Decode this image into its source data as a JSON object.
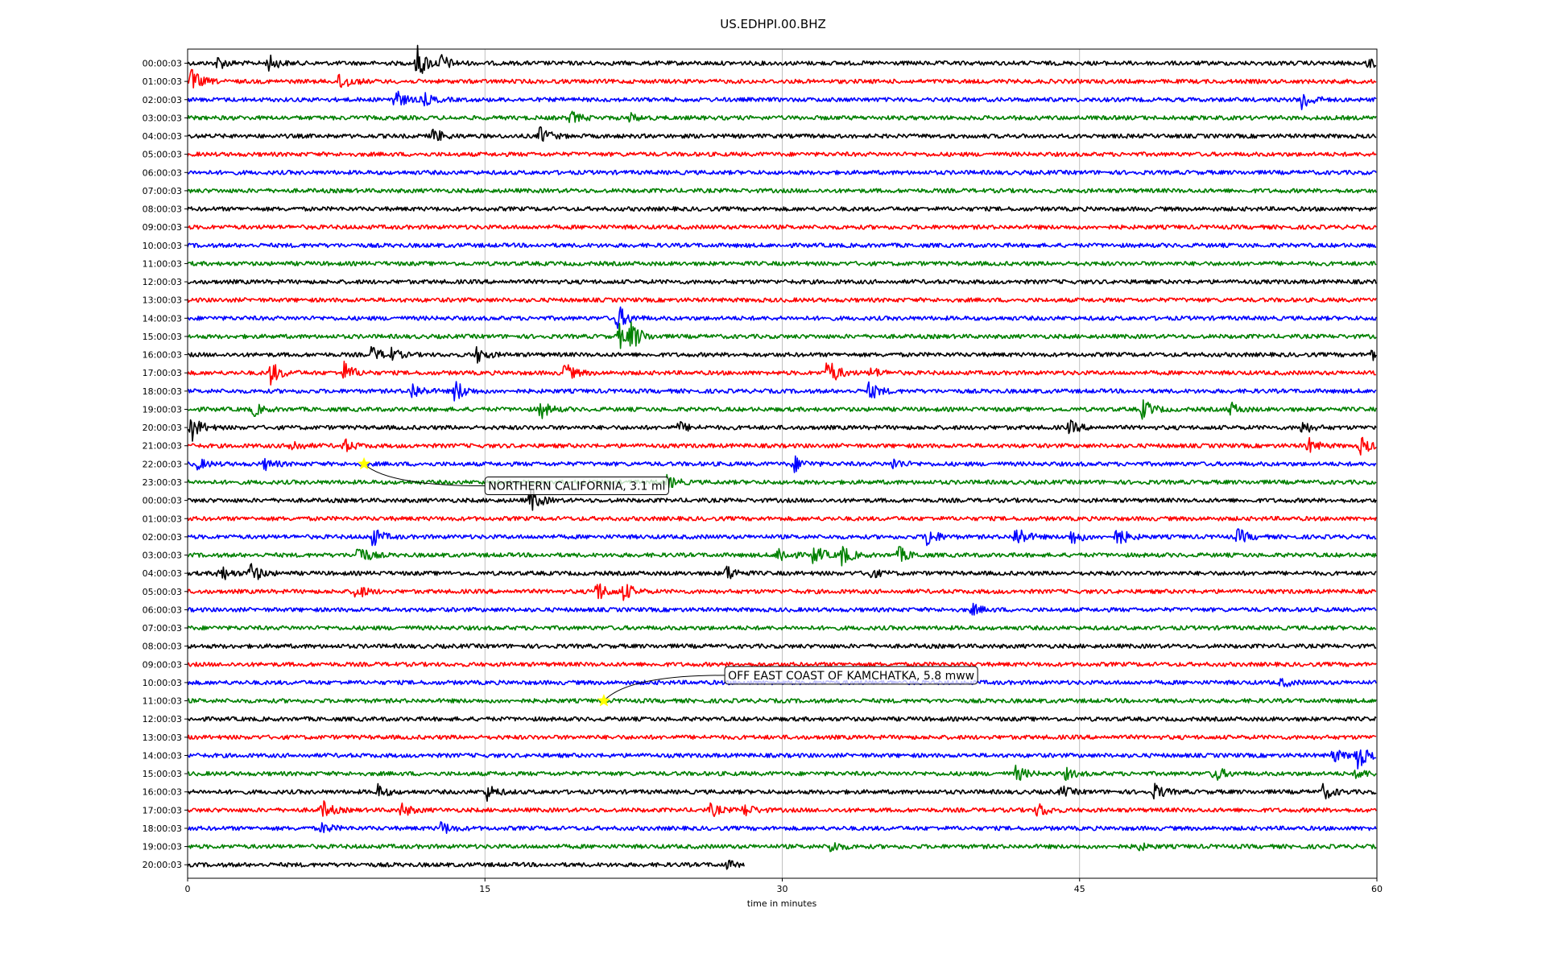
{
  "chart_data": {
    "type": "line",
    "title": "US.EDHPI.00.BHZ",
    "xlabel": "time in minutes",
    "ylabel": "",
    "xlim": [
      0,
      60
    ],
    "x_ticks": [
      0,
      15,
      30,
      45,
      60
    ],
    "grid": "vertical",
    "row_colors": [
      "#000000",
      "#ff0000",
      "#0000ff",
      "#008000"
    ],
    "row_labels": [
      "00:00:03",
      "01:00:03",
      "02:00:03",
      "03:00:03",
      "04:00:03",
      "05:00:03",
      "06:00:03",
      "07:00:03",
      "08:00:03",
      "09:00:03",
      "10:00:03",
      "11:00:03",
      "12:00:03",
      "13:00:03",
      "14:00:03",
      "15:00:03",
      "16:00:03",
      "17:00:03",
      "18:00:03",
      "19:00:03",
      "20:00:03",
      "21:00:03",
      "22:00:03",
      "23:00:03",
      "00:00:03",
      "01:00:03",
      "02:00:03",
      "03:00:03",
      "04:00:03",
      "05:00:03",
      "06:00:03",
      "07:00:03",
      "08:00:03",
      "09:00:03",
      "10:00:03",
      "11:00:03",
      "12:00:03",
      "13:00:03",
      "14:00:03",
      "15:00:03",
      "16:00:03",
      "17:00:03",
      "18:00:03",
      "19:00:03",
      "20:00:03"
    ],
    "last_row_end_minute": 28.1,
    "events": [
      {
        "label": "NORTHERN CALIFORNIA, 3.1 ml",
        "row": 22,
        "minute": 8.9,
        "label_row": 23.2,
        "label_minute": 15.0,
        "marker_color": "#ffff00"
      },
      {
        "label": "OFF EAST COAST OF KAMCHATKA, 5.8 mww",
        "row": 35,
        "minute": 21.0,
        "label_row": 33.6,
        "label_minute": 27.1,
        "marker_color": "#ffff00"
      }
    ],
    "bursts": [
      {
        "row": 0,
        "minute": 1.5,
        "amp": 0.5
      },
      {
        "row": 0,
        "minute": 4.1,
        "amp": 0.6
      },
      {
        "row": 0,
        "minute": 11.6,
        "amp": 1.3
      },
      {
        "row": 0,
        "minute": 12.8,
        "amp": 0.6
      },
      {
        "row": 0,
        "minute": 59.6,
        "amp": 0.4
      },
      {
        "row": 1,
        "minute": 0.2,
        "amp": 0.9
      },
      {
        "row": 1,
        "minute": 7.7,
        "amp": 0.8
      },
      {
        "row": 2,
        "minute": 10.4,
        "amp": 0.9
      },
      {
        "row": 2,
        "minute": 11.9,
        "amp": 0.5
      },
      {
        "row": 2,
        "minute": 56.2,
        "amp": 0.9
      },
      {
        "row": 3,
        "minute": 19.3,
        "amp": 0.5
      },
      {
        "row": 3,
        "minute": 22.3,
        "amp": 0.3
      },
      {
        "row": 4,
        "minute": 12.4,
        "amp": 0.6
      },
      {
        "row": 4,
        "minute": 17.8,
        "amp": 0.7
      },
      {
        "row": 14,
        "minute": 21.7,
        "amp": 1.0
      },
      {
        "row": 15,
        "minute": 21.8,
        "amp": 0.9
      },
      {
        "row": 15,
        "minute": 22.4,
        "amp": 1.0
      },
      {
        "row": 16,
        "minute": 9.3,
        "amp": 0.6
      },
      {
        "row": 16,
        "minute": 10.1,
        "amp": 0.6
      },
      {
        "row": 16,
        "minute": 14.6,
        "amp": 0.6
      },
      {
        "row": 16,
        "minute": 59.7,
        "amp": 0.5
      },
      {
        "row": 17,
        "minute": 4.2,
        "amp": 0.9
      },
      {
        "row": 17,
        "minute": 7.9,
        "amp": 0.8
      },
      {
        "row": 17,
        "minute": 19.0,
        "amp": 0.8
      },
      {
        "row": 17,
        "minute": 32.3,
        "amp": 1.2
      },
      {
        "row": 17,
        "minute": 34.5,
        "amp": 0.4
      },
      {
        "row": 18,
        "minute": 11.3,
        "amp": 0.7
      },
      {
        "row": 18,
        "minute": 13.5,
        "amp": 0.9
      },
      {
        "row": 18,
        "minute": 34.4,
        "amp": 0.7
      },
      {
        "row": 19,
        "minute": 3.3,
        "amp": 0.5
      },
      {
        "row": 19,
        "minute": 17.8,
        "amp": 0.7
      },
      {
        "row": 19,
        "minute": 48.2,
        "amp": 0.8
      },
      {
        "row": 19,
        "minute": 52.6,
        "amp": 0.5
      },
      {
        "row": 20,
        "minute": 0.2,
        "amp": 1.0
      },
      {
        "row": 20,
        "minute": 24.8,
        "amp": 0.4
      },
      {
        "row": 20,
        "minute": 44.5,
        "amp": 0.5
      },
      {
        "row": 20,
        "minute": 56.2,
        "amp": 0.5
      },
      {
        "row": 21,
        "minute": 5.2,
        "amp": 0.5
      },
      {
        "row": 21,
        "minute": 7.9,
        "amp": 0.5
      },
      {
        "row": 21,
        "minute": 56.5,
        "amp": 0.6
      },
      {
        "row": 21,
        "minute": 59.2,
        "amp": 0.7
      },
      {
        "row": 22,
        "minute": 0.5,
        "amp": 0.4
      },
      {
        "row": 22,
        "minute": 3.9,
        "amp": 0.4
      },
      {
        "row": 22,
        "minute": 30.6,
        "amp": 0.6
      },
      {
        "row": 22,
        "minute": 35.6,
        "amp": 0.4
      },
      {
        "row": 23,
        "minute": 24.2,
        "amp": 0.5
      },
      {
        "row": 24,
        "minute": 17.3,
        "amp": 0.9
      },
      {
        "row": 26,
        "minute": 9.3,
        "amp": 0.8
      },
      {
        "row": 26,
        "minute": 37.3,
        "amp": 0.8
      },
      {
        "row": 26,
        "minute": 41.8,
        "amp": 0.9
      },
      {
        "row": 26,
        "minute": 44.6,
        "amp": 0.6
      },
      {
        "row": 26,
        "minute": 46.9,
        "amp": 0.8
      },
      {
        "row": 26,
        "minute": 53.0,
        "amp": 0.6
      },
      {
        "row": 27,
        "minute": 8.6,
        "amp": 0.9
      },
      {
        "row": 27,
        "minute": 29.8,
        "amp": 0.7
      },
      {
        "row": 27,
        "minute": 31.6,
        "amp": 0.8
      },
      {
        "row": 27,
        "minute": 33.0,
        "amp": 0.8
      },
      {
        "row": 27,
        "minute": 35.9,
        "amp": 0.6
      },
      {
        "row": 28,
        "minute": 1.6,
        "amp": 0.7
      },
      {
        "row": 28,
        "minute": 3.2,
        "amp": 0.8
      },
      {
        "row": 28,
        "minute": 27.2,
        "amp": 0.6
      },
      {
        "row": 28,
        "minute": 34.4,
        "amp": 0.4
      },
      {
        "row": 29,
        "minute": 8.5,
        "amp": 0.6
      },
      {
        "row": 29,
        "minute": 20.6,
        "amp": 0.9
      },
      {
        "row": 29,
        "minute": 22.0,
        "amp": 0.7
      },
      {
        "row": 30,
        "minute": 39.6,
        "amp": 0.4
      },
      {
        "row": 34,
        "minute": 55.2,
        "amp": 0.3
      },
      {
        "row": 38,
        "minute": 59.0,
        "amp": 1.1
      },
      {
        "row": 38,
        "minute": 57.8,
        "amp": 0.5
      },
      {
        "row": 39,
        "minute": 41.8,
        "amp": 0.6
      },
      {
        "row": 39,
        "minute": 44.3,
        "amp": 0.4
      },
      {
        "row": 39,
        "minute": 51.8,
        "amp": 0.6
      },
      {
        "row": 39,
        "minute": 59.0,
        "amp": 0.4
      },
      {
        "row": 40,
        "minute": 9.6,
        "amp": 0.5
      },
      {
        "row": 40,
        "minute": 15.1,
        "amp": 0.6
      },
      {
        "row": 40,
        "minute": 44.1,
        "amp": 0.4
      },
      {
        "row": 40,
        "minute": 48.8,
        "amp": 0.6
      },
      {
        "row": 40,
        "minute": 57.3,
        "amp": 0.6
      },
      {
        "row": 41,
        "minute": 6.8,
        "amp": 0.7
      },
      {
        "row": 41,
        "minute": 10.8,
        "amp": 0.5
      },
      {
        "row": 41,
        "minute": 26.4,
        "amp": 0.5
      },
      {
        "row": 41,
        "minute": 28.1,
        "amp": 0.5
      },
      {
        "row": 41,
        "minute": 42.9,
        "amp": 0.6
      },
      {
        "row": 42,
        "minute": 6.8,
        "amp": 0.4
      },
      {
        "row": 42,
        "minute": 12.8,
        "amp": 0.5
      },
      {
        "row": 43,
        "minute": 32.4,
        "amp": 0.5
      },
      {
        "row": 43,
        "minute": 47.9,
        "amp": 0.3
      },
      {
        "row": 44,
        "minute": 27.2,
        "amp": 0.3
      }
    ]
  }
}
